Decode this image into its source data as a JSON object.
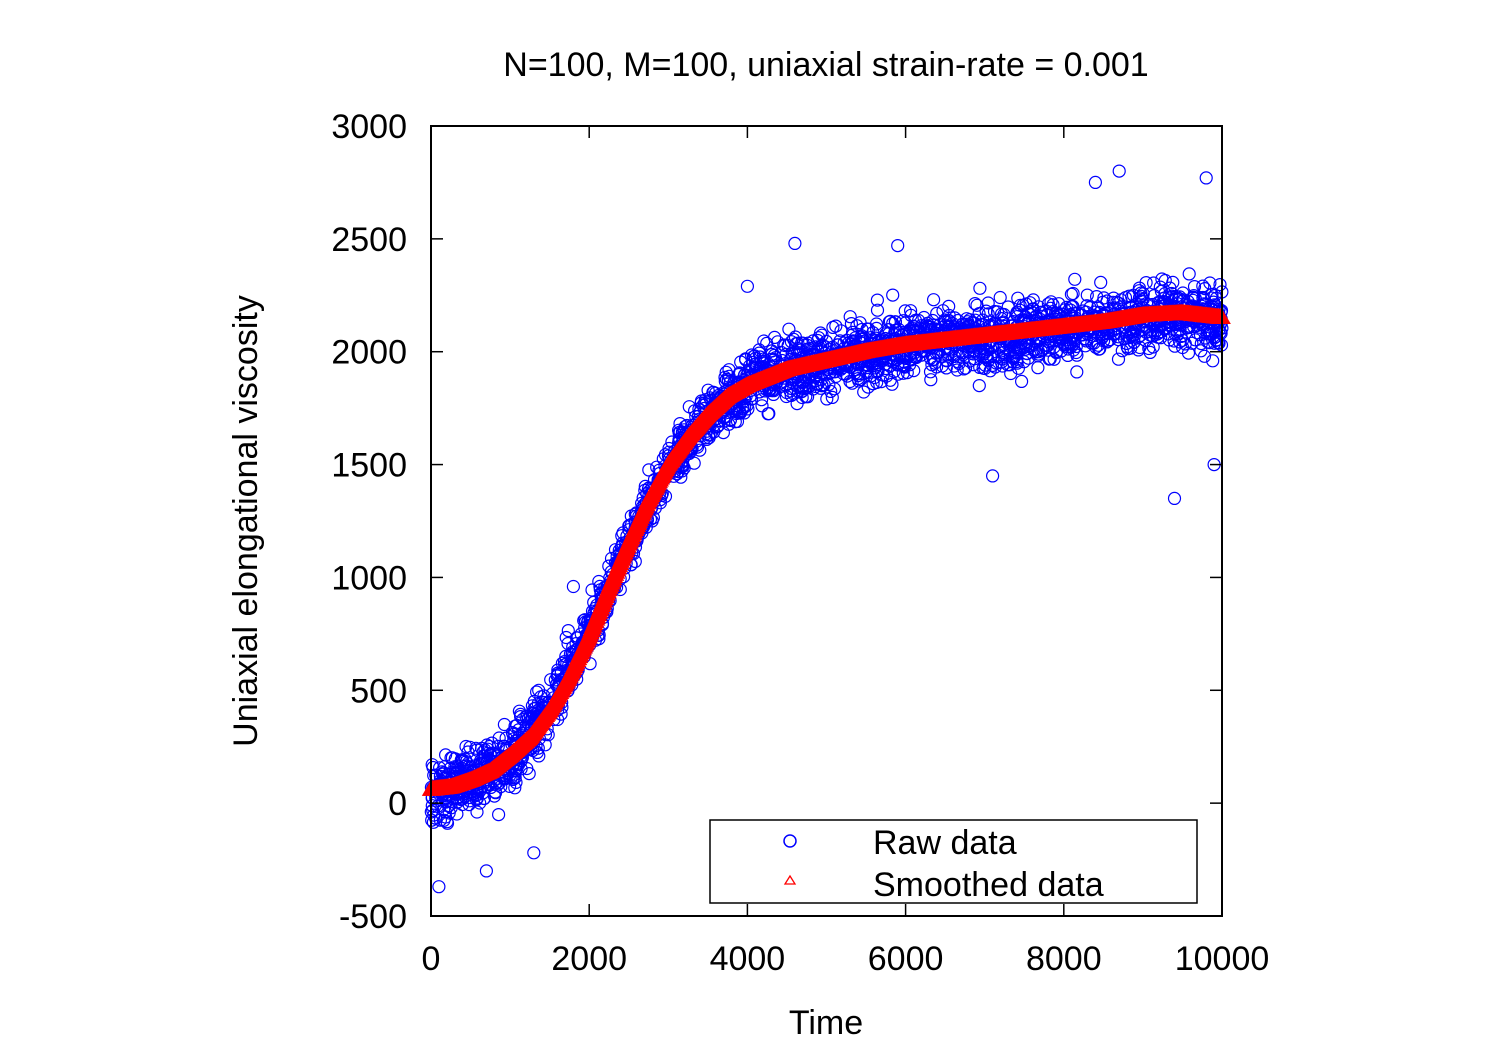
{
  "chart_data": {
    "type": "scatter",
    "title": "N=100, M=100, uniaxial strain-rate = 0.001",
    "xlabel": "Time",
    "ylabel": "Uniaxial elongational viscosity",
    "xlim": [
      0,
      10000
    ],
    "ylim": [
      -500,
      3000
    ],
    "xticks": [
      "0",
      "2000",
      "4000",
      "6000",
      "8000",
      "10000"
    ],
    "yticks": [
      "-500",
      "0",
      "500",
      "1000",
      "1500",
      "2000",
      "2500",
      "3000"
    ],
    "grid": false,
    "legend_position": "bottom-right",
    "series": [
      {
        "name": "Raw data",
        "marker": "open-circle",
        "color": "#0000ff",
        "trend_x": [
          0,
          500,
          1000,
          1500,
          2000,
          2500,
          3000,
          3500,
          4000,
          4500,
          5000,
          6000,
          7000,
          8000,
          9000,
          9500,
          10000
        ],
        "trend_y": [
          60,
          100,
          200,
          420,
          750,
          1150,
          1500,
          1720,
          1850,
          1920,
          1950,
          2030,
          2060,
          2100,
          2150,
          2170,
          2150
        ],
        "spread_y": [
          230,
          230,
          230,
          200,
          180,
          180,
          180,
          200,
          200,
          220,
          220,
          220,
          220,
          220,
          220,
          220,
          220
        ],
        "outlier_points": [
          [
            100,
            -370
          ],
          [
            700,
            -300
          ],
          [
            1300,
            -220
          ],
          [
            1800,
            960
          ],
          [
            4000,
            2290
          ],
          [
            4600,
            2480
          ],
          [
            5900,
            2470
          ],
          [
            7100,
            1450
          ],
          [
            8400,
            2750
          ],
          [
            8700,
            2800
          ],
          [
            9400,
            1350
          ],
          [
            9800,
            2770
          ],
          [
            9900,
            1500
          ]
        ]
      },
      {
        "name": "Smoothed data",
        "marker": "open-triangle",
        "color": "#ff0000",
        "x": [
          0,
          250,
          500,
          750,
          1000,
          1250,
          1500,
          1750,
          2000,
          2250,
          2500,
          2750,
          3000,
          3250,
          3500,
          3750,
          4000,
          4500,
          5000,
          5500,
          6000,
          6500,
          7000,
          7500,
          8000,
          8500,
          9000,
          9500,
          10000
        ],
        "y": [
          60,
          70,
          100,
          140,
          210,
          290,
          410,
          560,
          740,
          950,
          1150,
          1340,
          1500,
          1620,
          1720,
          1800,
          1850,
          1920,
          1960,
          2000,
          2030,
          2050,
          2070,
          2090,
          2110,
          2130,
          2160,
          2170,
          2150
        ]
      }
    ]
  }
}
